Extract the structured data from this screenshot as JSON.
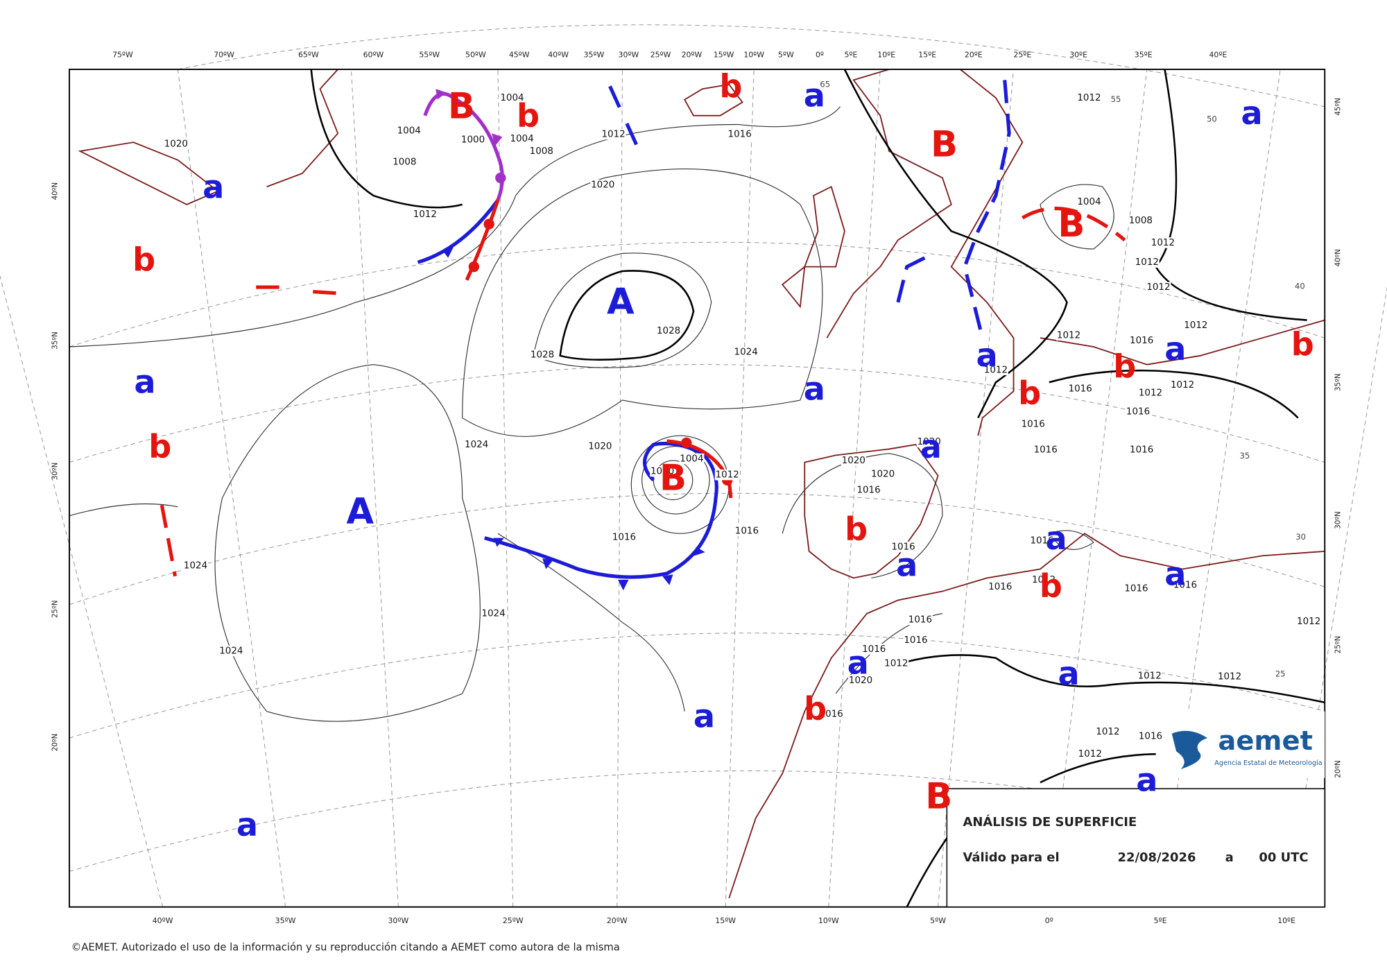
{
  "map": {
    "top_longitudes": [
      "75ºW",
      "70ºW",
      "65ºW",
      "60ºW",
      "55ºW",
      "50ºW",
      "45ºW",
      "40ºW",
      "35ºW",
      "30ºW",
      "25ºW",
      "20ºW",
      "15ºW",
      "10ºW",
      "5ºW",
      "0º",
      "5ºE",
      "10ºE",
      "15ºE",
      "20ºE",
      "25ºE",
      "30ºE",
      "35ºE",
      "40ºE"
    ],
    "bottom_longitudes": [
      "40ºW",
      "35ºW",
      "30ºW",
      "25ºW",
      "20ºW",
      "15ºW",
      "10ºW",
      "5ºW",
      "0º",
      "5ºE",
      "10ºE"
    ],
    "left_latitudes": [
      "40ºN",
      "35ºN",
      "30ºN",
      "25ºN",
      "20ºN"
    ],
    "right_latitudes": [
      "45ºN",
      "40ºN",
      "35ºN",
      "30ºN",
      "25ºN",
      "20ºN"
    ],
    "grid_labels": [
      "65",
      "55",
      "50",
      "40",
      "35",
      "30",
      "25"
    ],
    "isobar_labels": [
      "1020",
      "1004",
      "1008",
      "1000",
      "1004",
      "1008",
      "1004",
      "1012",
      "1012",
      "1016",
      "1020",
      "1028",
      "1028",
      "1024",
      "1024",
      "1020",
      "1004",
      "1000",
      "1012",
      "1016",
      "1016",
      "1024",
      "1024",
      "1024",
      "1020",
      "1020",
      "1016",
      "1020",
      "1012",
      "1004",
      "1008",
      "1012",
      "1012",
      "1012",
      "1012",
      "1012",
      "1016",
      "1012",
      "1012",
      "1012",
      "1016",
      "1016",
      "1016",
      "1016",
      "1016",
      "1016",
      "1016",
      "1016",
      "1016",
      "1016",
      "1012",
      "1016",
      "1016",
      "1016",
      "1012",
      "1020",
      "1016",
      "1012",
      "1012",
      "1012",
      "1012",
      "1012",
      "1016"
    ],
    "centers": [
      "B",
      "b",
      "b",
      "a",
      "a",
      "B",
      "B",
      "a",
      "b",
      "A",
      "a",
      "a",
      "a",
      "b",
      "b",
      "b",
      "a",
      "b",
      "a",
      "B",
      "A",
      "b",
      "a",
      "a",
      "a",
      "b",
      "a",
      "a",
      "b",
      "a",
      "a",
      "B",
      "a"
    ],
    "colors": {
      "high": "#1c1cd8",
      "low": "#e4140f"
    }
  },
  "title_box": {
    "title": "ANÁLISIS DE SUPERFICIE",
    "valid_label": "Válido para el",
    "date": "22/08/2026",
    "separator": "a",
    "time": "00 UTC"
  },
  "logo": {
    "name": "aemet",
    "subtitle": "Agencia Estatal de Meteorología"
  },
  "footer": {
    "copyright": "©AEMET. Autorizado el uso de la información y su reproducción citando a AEMET como autora de la misma"
  }
}
